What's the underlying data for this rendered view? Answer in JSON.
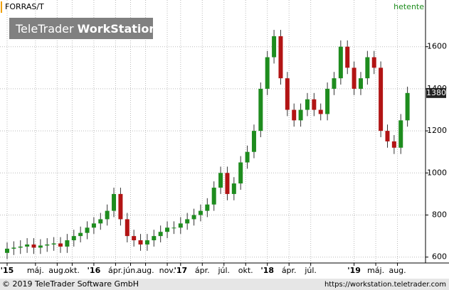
{
  "chart_data": {
    "type": "candlestick",
    "title": "FORRAS/T",
    "interval": "hetente",
    "logo": {
      "brand": "TeleTrader",
      "product": "WorkStation"
    },
    "footer": {
      "copyright": "© 2019 TeleTrader Software GmbH",
      "url": "https://workstation.teletrader.com"
    },
    "x": [
      0,
      4,
      8,
      12,
      16,
      20,
      24,
      28,
      32,
      36,
      40,
      44,
      48,
      52,
      56,
      60,
      64,
      68,
      72,
      76,
      80,
      84,
      88,
      92,
      96,
      100,
      104,
      108,
      112,
      116,
      120,
      124,
      128,
      132,
      136,
      140,
      144,
      148,
      152,
      156,
      160,
      164,
      168,
      172,
      176,
      180,
      184,
      188,
      192,
      196,
      200,
      204,
      208,
      212,
      216,
      220,
      224,
      228,
      232,
      236,
      240
    ],
    "open": [
      620,
      640,
      645,
      650,
      660,
      645,
      655,
      660,
      665,
      650,
      680,
      700,
      715,
      740,
      760,
      780,
      820,
      900,
      780,
      700,
      680,
      660,
      680,
      700,
      720,
      740,
      740,
      760,
      780,
      800,
      820,
      850,
      930,
      1000,
      900,
      950,
      1050,
      1100,
      1200,
      1400,
      1550,
      1650,
      1450,
      1300,
      1250,
      1300,
      1350,
      1300,
      1280,
      1400,
      1450,
      1600,
      1500,
      1400,
      1450,
      1550,
      1500,
      1200,
      1150,
      1120,
      1250
    ],
    "high": [
      670,
      675,
      680,
      690,
      690,
      685,
      690,
      695,
      695,
      710,
      730,
      745,
      770,
      790,
      810,
      850,
      930,
      930,
      810,
      730,
      710,
      710,
      730,
      750,
      770,
      770,
      790,
      810,
      830,
      850,
      880,
      960,
      1030,
      1030,
      980,
      1080,
      1130,
      1230,
      1430,
      1580,
      1680,
      1680,
      1480,
      1330,
      1330,
      1380,
      1380,
      1330,
      1430,
      1480,
      1630,
      1630,
      1530,
      1480,
      1580,
      1580,
      1530,
      1230,
      1180,
      1280,
      1410
    ],
    "low": [
      590,
      610,
      615,
      620,
      615,
      615,
      625,
      630,
      620,
      620,
      650,
      670,
      685,
      710,
      730,
      750,
      790,
      750,
      670,
      650,
      630,
      630,
      650,
      670,
      690,
      710,
      710,
      730,
      750,
      770,
      790,
      820,
      900,
      870,
      870,
      920,
      1020,
      1070,
      1170,
      1370,
      1520,
      1420,
      1270,
      1220,
      1220,
      1270,
      1270,
      1250,
      1250,
      1370,
      1420,
      1470,
      1370,
      1370,
      1420,
      1470,
      1170,
      1120,
      1090,
      1090,
      1220
    ],
    "close": [
      640,
      645,
      650,
      660,
      645,
      655,
      660,
      665,
      650,
      680,
      700,
      715,
      740,
      760,
      780,
      820,
      900,
      780,
      700,
      680,
      660,
      680,
      700,
      720,
      740,
      740,
      760,
      780,
      800,
      820,
      850,
      930,
      1000,
      900,
      950,
      1050,
      1100,
      1200,
      1400,
      1550,
      1650,
      1450,
      1300,
      1250,
      1300,
      1350,
      1300,
      1280,
      1400,
      1450,
      1600,
      1500,
      1400,
      1450,
      1550,
      1500,
      1200,
      1150,
      1120,
      1250,
      1380
    ],
    "up_color": "#1e8c1e",
    "down_color": "#b21414",
    "xlim": [
      -3,
      244
    ],
    "xticks": [
      {
        "value": 0,
        "label": "'15"
      },
      {
        "value": 17,
        "label": "máj."
      },
      {
        "value": 30,
        "label": "aug."
      },
      {
        "value": 39,
        "label": "okt."
      },
      {
        "value": 52,
        "label": "'16"
      },
      {
        "value": 65,
        "label": "ápr."
      },
      {
        "value": 74,
        "label": "jún."
      },
      {
        "value": 83,
        "label": "aug."
      },
      {
        "value": 96,
        "label": "nov."
      },
      {
        "value": 104,
        "label": "'17"
      },
      {
        "value": 117,
        "label": "ápr."
      },
      {
        "value": 130,
        "label": "júl."
      },
      {
        "value": 143,
        "label": "okt."
      },
      {
        "value": 156,
        "label": "'18"
      },
      {
        "value": 169,
        "label": "ápr."
      },
      {
        "value": 182,
        "label": "júl."
      },
      {
        "value": 208,
        "label": "'19"
      },
      {
        "value": 221,
        "label": "máj."
      },
      {
        "value": 234,
        "label": "aug."
      }
    ],
    "ylim": [
      572,
      1822
    ],
    "yticks": [
      600,
      800,
      1000,
      1200,
      1400,
      1600
    ],
    "grid": true
  }
}
